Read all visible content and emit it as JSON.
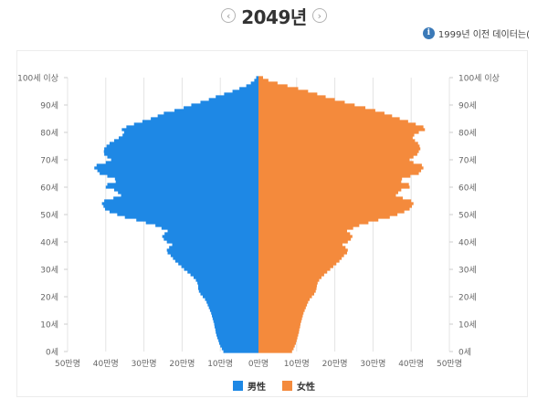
{
  "header": {
    "year_label": "2049년",
    "prev_icon": "chevron-left-icon",
    "next_icon": "chevron-right-icon"
  },
  "note": {
    "icon": "info-icon",
    "text": "1999년 이전 데이터는("
  },
  "legend": {
    "male_label": "男性",
    "female_label": "女性"
  },
  "colors": {
    "male": "#1e88e5",
    "female": "#f48a3c"
  },
  "chart_data": {
    "type": "bar",
    "orientation": "horizontal-pyramid",
    "y_ticks_left": [
      "0세",
      "10세",
      "20세",
      "30세",
      "40세",
      "50세",
      "60세",
      "70세",
      "80세",
      "90세",
      "100세 이상"
    ],
    "y_ticks_right": [
      "0세",
      "10세",
      "20세",
      "30세",
      "40세",
      "50세",
      "60세",
      "70세",
      "80세",
      "90세",
      "100세 이상"
    ],
    "x_ticks": [
      "50만명",
      "40만명",
      "30만명",
      "20만명",
      "10만명",
      "0만명",
      "10만명",
      "20만명",
      "30만명",
      "40만명",
      "50만명"
    ],
    "xlim": [
      -50,
      50
    ],
    "ylim": [
      0,
      100
    ],
    "grid": true,
    "legend_position": "bottom",
    "ages": [
      0,
      1,
      2,
      3,
      4,
      5,
      6,
      7,
      8,
      9,
      10,
      11,
      12,
      13,
      14,
      15,
      16,
      17,
      18,
      19,
      20,
      21,
      22,
      23,
      24,
      25,
      26,
      27,
      28,
      29,
      30,
      31,
      32,
      33,
      34,
      35,
      36,
      37,
      38,
      39,
      40,
      41,
      42,
      43,
      44,
      45,
      46,
      47,
      48,
      49,
      50,
      51,
      52,
      53,
      54,
      55,
      56,
      57,
      58,
      59,
      60,
      61,
      62,
      63,
      64,
      65,
      66,
      67,
      68,
      69,
      70,
      71,
      72,
      73,
      74,
      75,
      76,
      77,
      78,
      79,
      80,
      81,
      82,
      83,
      84,
      85,
      86,
      87,
      88,
      89,
      90,
      91,
      92,
      93,
      94,
      95,
      96,
      97,
      98,
      99,
      100
    ],
    "series": [
      {
        "name": "男性",
        "values": [
          9.2,
          9.6,
          10,
          10.3,
          10.5,
          10.8,
          11,
          11.2,
          11.3,
          11.5,
          11.6,
          11.8,
          12,
          12.2,
          12.4,
          12.7,
          13,
          13.3,
          13.6,
          14,
          14.6,
          15.2,
          15.6,
          15.8,
          15.8,
          16,
          16.4,
          17,
          17.8,
          18.6,
          19.5,
          20.2,
          21,
          21.8,
          22.4,
          23,
          23.8,
          24,
          23.4,
          22.6,
          24,
          24.8,
          25.2,
          24.6,
          23.8,
          25.4,
          27,
          29.5,
          32,
          35,
          37,
          39,
          40.2,
          40.6,
          41,
          40.4,
          38,
          36,
          36.8,
          37.8,
          40,
          39.6,
          37.4,
          37.6,
          39.6,
          41.6,
          42.2,
          43,
          42.4,
          40,
          38.6,
          39.6,
          40.4,
          40.5,
          40.4,
          39.8,
          39,
          37.8,
          36.6,
          35.6,
          35.2,
          35.8,
          34.6,
          32.6,
          30.4,
          28.2,
          26.4,
          24.8,
          22,
          19.6,
          17.6,
          15.2,
          13,
          11.2,
          9,
          6.8,
          5,
          3.2,
          2,
          1.1,
          0.6
        ]
      },
      {
        "name": "女性",
        "values": [
          8.8,
          9.2,
          9.5,
          9.8,
          10,
          10.2,
          10.4,
          10.6,
          10.7,
          10.9,
          11,
          11.2,
          11.4,
          11.6,
          11.8,
          12.1,
          12.4,
          12.7,
          13,
          13.4,
          14,
          14.6,
          15,
          15.2,
          15.3,
          15.5,
          15.9,
          16.5,
          17.2,
          18,
          18.8,
          19.6,
          20.4,
          21.2,
          21.8,
          22.4,
          23.2,
          23.4,
          22.8,
          22,
          23.4,
          24.2,
          24.6,
          24,
          23.2,
          24.8,
          26.4,
          28.8,
          31.4,
          34.4,
          36.4,
          38.2,
          39.6,
          40.2,
          40.6,
          40,
          37.8,
          36,
          36.6,
          37.4,
          39.6,
          39.4,
          37.4,
          37.6,
          39.8,
          42,
          42.6,
          43.2,
          42.8,
          40.6,
          39.6,
          40.6,
          41.6,
          42,
          42.4,
          42.2,
          41.8,
          41,
          40.4,
          40.8,
          42,
          43.6,
          43.2,
          41.2,
          39.2,
          37,
          35,
          33,
          30.6,
          28,
          25.2,
          22.6,
          20,
          17.6,
          15.4,
          13,
          10.4,
          7.6,
          5,
          2.6,
          1.2
        ]
      }
    ]
  }
}
